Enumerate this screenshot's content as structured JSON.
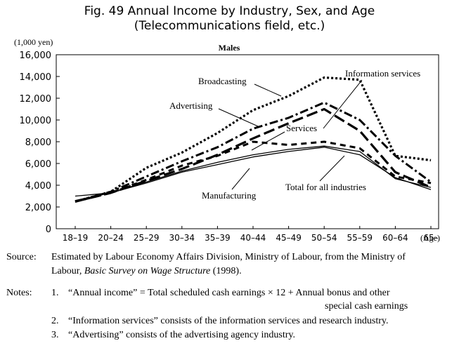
{
  "figure": {
    "title_line1": "Fig. 49  Annual Income by Industry, Sex, and Age",
    "title_line2": "(Telecommunications field, etc.)"
  },
  "chart_data": {
    "type": "line",
    "title": "Males",
    "ylabel": "(1,000 yen)",
    "xlabel": "(Age)",
    "ylim": [
      0,
      16000
    ],
    "yticks": [
      "0",
      "2,000",
      "4,000",
      "6,000",
      "8,000",
      "10,000",
      "12,000",
      "14,000",
      "16,000"
    ],
    "categories": [
      "18–19",
      "20–24",
      "25–29",
      "30–34",
      "35–39",
      "40–44",
      "45–49",
      "50–54",
      "55–59",
      "60–64",
      "65–"
    ],
    "series": [
      {
        "name": "Broadcasting",
        "style": "dotted",
        "values": [
          2500,
          3400,
          5600,
          7000,
          8800,
          10900,
          12200,
          13900,
          13700,
          6700,
          6300
        ]
      },
      {
        "name": "Information services",
        "style": "long-dash",
        "values": [
          2500,
          3300,
          4400,
          5500,
          6800,
          8300,
          9700,
          11000,
          9000,
          5200,
          3800
        ]
      },
      {
        "name": "Advertising",
        "style": "dash-dot",
        "values": [
          2500,
          3400,
          4800,
          6200,
          7500,
          9200,
          10200,
          11600,
          10000,
          6700,
          4300
        ]
      },
      {
        "name": "Services",
        "style": "dashed",
        "values": [
          2500,
          3300,
          4500,
          5800,
          6700,
          8000,
          7700,
          8000,
          7400,
          4800,
          4200
        ]
      },
      {
        "name": "Total for all industries",
        "style": "solid",
        "values": [
          2600,
          3300,
          4300,
          5300,
          6100,
          6800,
          7300,
          7600,
          7100,
          4600,
          3800
        ]
      },
      {
        "name": "Manufacturing",
        "style": "solid",
        "values": [
          3000,
          3300,
          4200,
          5200,
          5900,
          6600,
          7100,
          7500,
          6800,
          4700,
          3600
        ]
      }
    ],
    "annotations": [
      "Broadcasting",
      "Information services",
      "Advertising",
      "Services",
      "Manufacturing",
      "Total for all industries"
    ]
  },
  "source": {
    "label": "Source:",
    "line1": "Estimated by Labour Economy Affairs Division, Ministry of Labour, from the Ministry of",
    "line2_pre": "Labour, ",
    "line2_italic": "Basic Survey on Wage Structure",
    "line2_post": " (1998)."
  },
  "notes": {
    "label": "Notes:",
    "items": [
      {
        "num": "1.",
        "text": "“Annual income” = Total scheduled cash earnings × 12 + Annual bonus and other",
        "cont": "special cash earnings"
      },
      {
        "num": "2.",
        "text": "“Information services” consists of the information services and research industry."
      },
      {
        "num": "3.",
        "text": "“Advertising” consists of the advertising agency industry."
      }
    ]
  }
}
